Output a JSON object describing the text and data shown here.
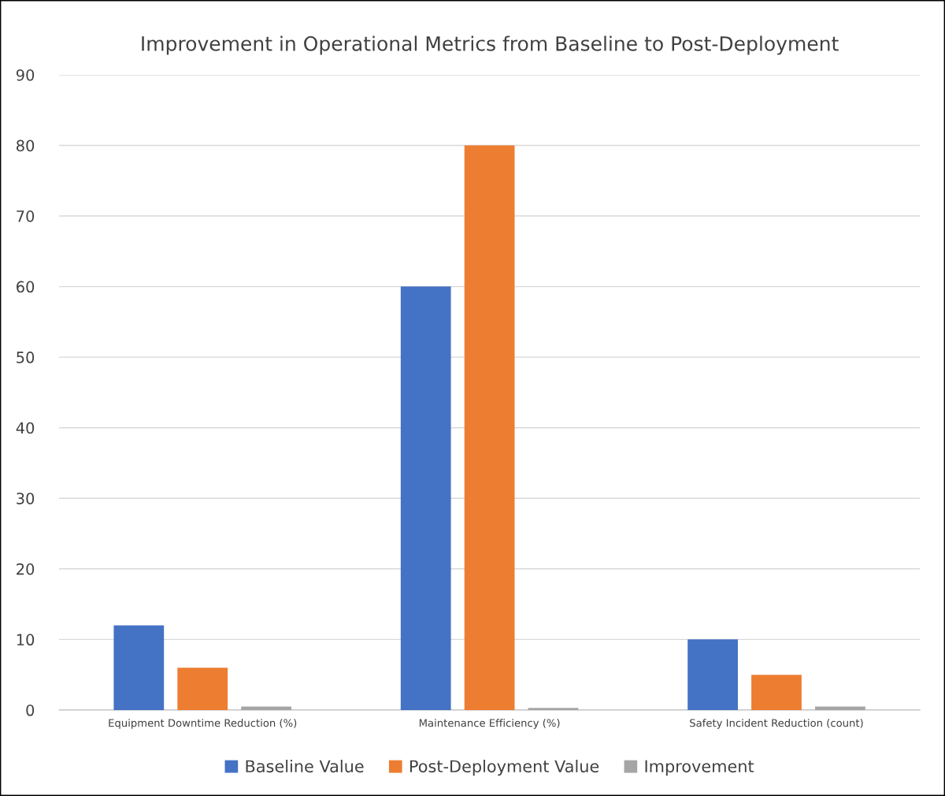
{
  "chart_data": {
    "type": "bar",
    "title": "Improvement in Operational Metrics from Baseline to Post-Deployment",
    "categories": [
      "Equipment Downtime Reduction (%)",
      "Maintenance Efficiency (%)",
      "Safety Incident Reduction (count)"
    ],
    "series": [
      {
        "name": "Baseline Value",
        "color": "#4472c4",
        "values": [
          12,
          60,
          10
        ]
      },
      {
        "name": "Post-Deployment Value",
        "color": "#ed7d31",
        "values": [
          6,
          80,
          5
        ]
      },
      {
        "name": "Improvement",
        "color": "#a5a5a5",
        "values": [
          0.5,
          0.3,
          0.5
        ]
      }
    ],
    "ylim": [
      0,
      90
    ],
    "yticks": [
      0,
      10,
      20,
      30,
      40,
      50,
      60,
      70,
      80,
      90
    ],
    "grid": "y",
    "legend": "bottom"
  }
}
